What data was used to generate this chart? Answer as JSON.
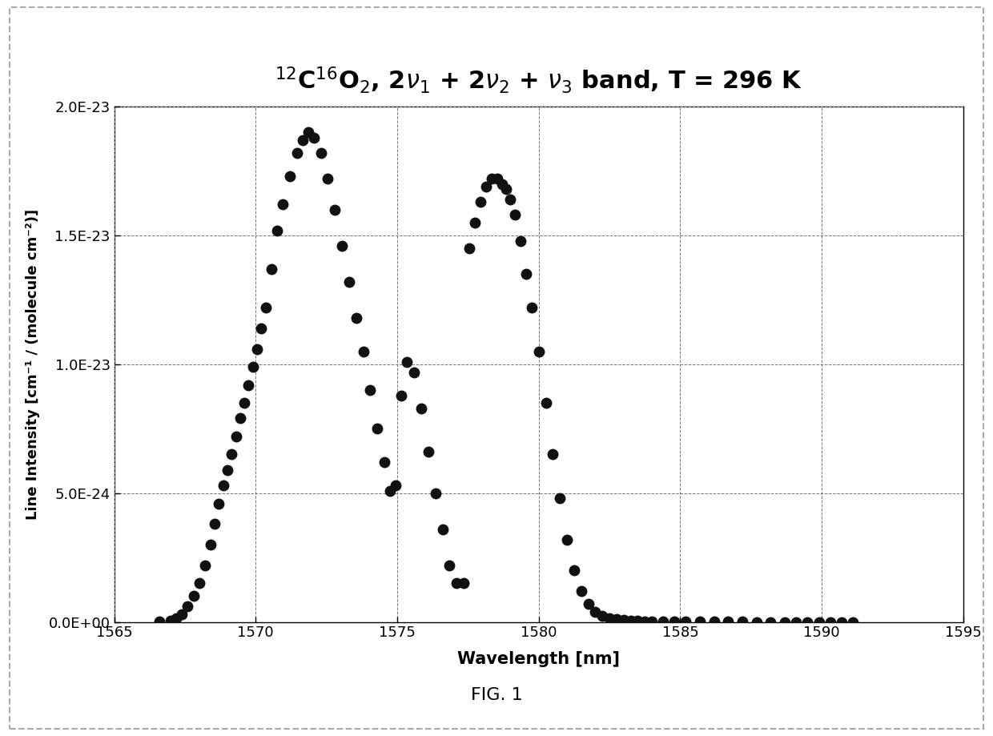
{
  "xlabel": "Wavelength [nm]",
  "ylabel": "Line Intensity [cm⁻¹ / (molecule cm⁻²)]",
  "fig_label": "FIG. 1",
  "xlim": [
    1565,
    1595
  ],
  "ylim": [
    0.0,
    2e-23
  ],
  "xticks": [
    1565,
    1570,
    1575,
    1580,
    1585,
    1590,
    1595
  ],
  "ytick_labels": [
    "0.0E+00",
    "5.0E-24",
    "1.0E-23",
    "1.5E-23",
    "2.0E-23"
  ],
  "ytick_vals": [
    0.0,
    5e-24,
    1e-23,
    1.5e-23,
    2e-23
  ],
  "marker_color": "#111111",
  "marker_size": 100,
  "background_color": "#ffffff",
  "scatter_x": [
    1566.6,
    1567.0,
    1567.2,
    1567.4,
    1567.6,
    1567.8,
    1568.0,
    1568.2,
    1568.4,
    1568.55,
    1568.7,
    1568.85,
    1569.0,
    1569.15,
    1569.3,
    1569.45,
    1569.6,
    1569.75,
    1569.9,
    1570.05,
    1570.2,
    1570.35,
    1570.55,
    1570.75,
    1570.95,
    1571.2,
    1571.45,
    1571.65,
    1571.85,
    1572.05,
    1572.3,
    1572.55,
    1572.8,
    1573.05,
    1573.3,
    1573.55,
    1573.8,
    1574.05,
    1574.3,
    1574.55,
    1574.75,
    1574.95,
    1575.15,
    1575.35,
    1575.6,
    1575.85,
    1576.1,
    1576.35,
    1576.6,
    1576.85,
    1577.1,
    1577.35,
    1577.55,
    1577.75,
    1577.95,
    1578.15,
    1578.35,
    1578.55,
    1578.7,
    1578.85,
    1579.0,
    1579.15,
    1579.35,
    1579.55,
    1579.75,
    1580.0,
    1580.25,
    1580.5,
    1580.75,
    1581.0,
    1581.25,
    1581.5,
    1581.75,
    1582.0,
    1582.25,
    1582.5,
    1582.75,
    1583.0,
    1583.25,
    1583.5,
    1583.75,
    1584.0,
    1584.4,
    1584.8,
    1585.2,
    1585.7,
    1586.2,
    1586.7,
    1587.2,
    1587.7,
    1588.2,
    1588.7,
    1589.1,
    1589.5,
    1589.9,
    1590.3,
    1590.7,
    1591.1
  ],
  "scatter_y": [
    3e-26,
    6e-26,
    1.5e-25,
    3e-25,
    6e-25,
    1e-24,
    1.5e-24,
    2.2e-24,
    3e-24,
    3.8e-24,
    4.6e-24,
    5.3e-24,
    5.9e-24,
    6.5e-24,
    7.2e-24,
    7.9e-24,
    8.5e-24,
    9.2e-24,
    9.9e-24,
    1.06e-23,
    1.14e-23,
    1.22e-23,
    1.37e-23,
    1.52e-23,
    1.62e-23,
    1.73e-23,
    1.82e-23,
    1.87e-23,
    1.9e-23,
    1.88e-23,
    1.82e-23,
    1.72e-23,
    1.6e-23,
    1.46e-23,
    1.32e-23,
    1.18e-23,
    1.05e-23,
    9e-24,
    7.5e-24,
    6.2e-24,
    5.1e-24,
    5.3e-24,
    8.8e-24,
    1.01e-23,
    9.7e-24,
    8.3e-24,
    6.6e-24,
    5e-24,
    3.6e-24,
    2.2e-24,
    1.5e-24,
    1.5e-24,
    1.45e-23,
    1.55e-23,
    1.63e-23,
    1.69e-23,
    1.72e-23,
    1.72e-23,
    1.7e-23,
    1.68e-23,
    1.64e-23,
    1.58e-23,
    1.48e-23,
    1.35e-23,
    1.22e-23,
    1.05e-23,
    8.5e-24,
    6.5e-24,
    4.8e-24,
    3.2e-24,
    2e-24,
    1.2e-24,
    7e-25,
    4e-25,
    2.5e-25,
    1.5e-25,
    1e-25,
    7e-26,
    5e-26,
    3.5e-26,
    2.5e-26,
    2e-26,
    1.5e-26,
    1.2e-26,
    1e-26,
    7e-27,
    5e-27,
    3e-27,
    2e-27,
    1.5e-27,
    1e-27,
    8e-28,
    6e-28,
    5e-28,
    4e-28,
    3e-28,
    2e-28,
    1e-28
  ]
}
